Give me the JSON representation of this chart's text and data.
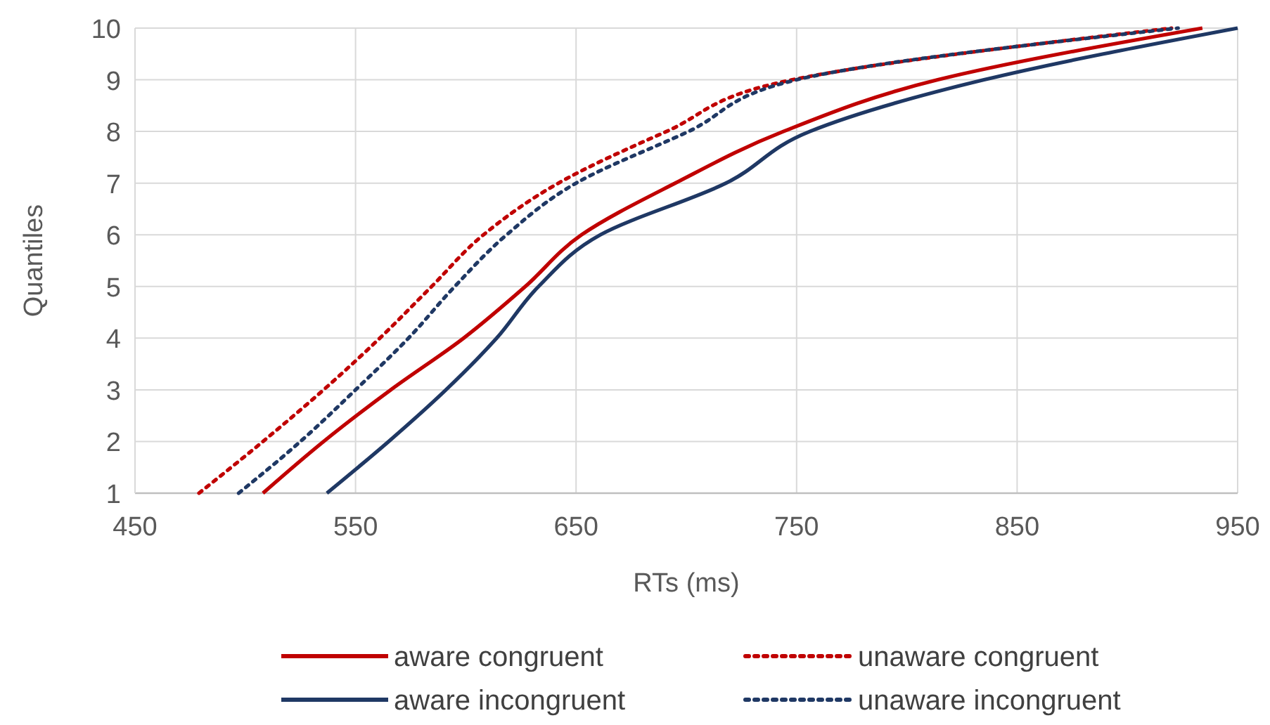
{
  "chart_data": {
    "type": "line",
    "xlabel": "RTs (ms)",
    "ylabel": "Quantiles",
    "xlim": [
      450,
      950
    ],
    "ylim": [
      1,
      10
    ],
    "xticks": [
      450,
      550,
      650,
      750,
      850,
      950
    ],
    "yticks": [
      1,
      2,
      3,
      4,
      5,
      6,
      7,
      8,
      9,
      10
    ],
    "grid": true,
    "legend": "bottom",
    "series": [
      {
        "name": "aware congruent",
        "color": "#c00000",
        "line_style": "solid",
        "x": [
          508,
          535.5,
          566,
          599,
          627,
          652.5,
          695,
          744,
          814,
          934
        ],
        "values": [
          1,
          2,
          3,
          4,
          5,
          6,
          7,
          8,
          9,
          10
        ]
      },
      {
        "name": "unaware congruent",
        "color": "#c00000",
        "line_style": "dotted",
        "x": [
          479,
          508,
          535.5,
          561,
          584.5,
          608,
          642,
          691,
          748,
          920
        ],
        "values": [
          1,
          2,
          3,
          4,
          5,
          6,
          7,
          8,
          9,
          10
        ]
      },
      {
        "name": "aware incongruent",
        "color": "#1f3864",
        "line_style": "solid",
        "x": [
          537,
          565,
          591,
          614,
          633,
          661,
          718,
          756,
          835,
          950
        ],
        "values": [
          1,
          2,
          3,
          4,
          5,
          6,
          7,
          8,
          9,
          10
        ]
      },
      {
        "name": "unaware incongruent",
        "color": "#1f3864",
        "line_style": "dotted",
        "x": [
          497,
          525,
          550,
          574,
          595,
          618.5,
          650,
          701,
          750,
          923
        ],
        "values": [
          1,
          2,
          3,
          4,
          5,
          6,
          7,
          8,
          9,
          10
        ]
      }
    ]
  }
}
